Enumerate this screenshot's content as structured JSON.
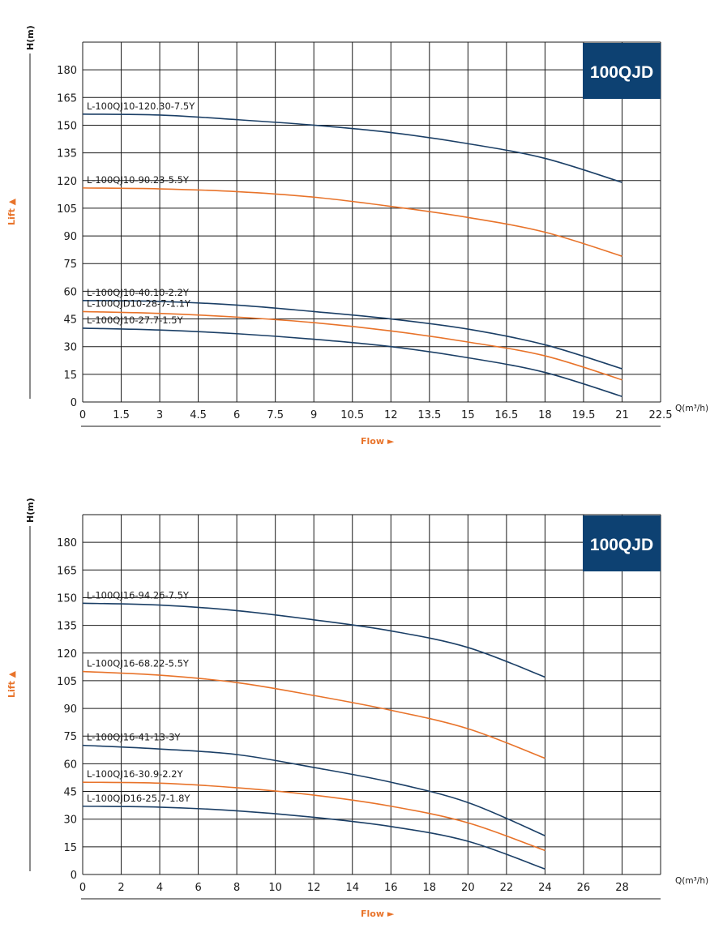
{
  "colors": {
    "dark": "#1b3f66",
    "orange": "#e8732a",
    "badge": "#0d4172",
    "grid": "#1a1a1a"
  },
  "chart_data": [
    {
      "type": "line",
      "model": "100QJD",
      "ylabel": "H(m)",
      "lift_label": "Lift ▲",
      "flow_label": "Flow ►",
      "x_unit": "Q(m³/h)",
      "x_ticks": [
        "0",
        "1.5",
        "3",
        "4.5",
        "6",
        "7.5",
        "9",
        "10.5",
        "12",
        "13.5",
        "15",
        "16.5",
        "18",
        "19.5",
        "21",
        "22.5"
      ],
      "y_ticks": [
        "0",
        "15",
        "30",
        "45",
        "60",
        "75",
        "90",
        "105",
        "120",
        "135",
        "150",
        "165",
        "180"
      ],
      "xlim": [
        0,
        22.5
      ],
      "ylim": [
        0,
        195
      ],
      "grid": true,
      "series": [
        {
          "name": "L-100QJ10-120.30-7.5Y",
          "color": "dark",
          "x": [
            0,
            3,
            6,
            9,
            12,
            15,
            18,
            21
          ],
          "y": [
            156,
            155.5,
            153,
            150,
            146,
            140,
            132,
            119
          ]
        },
        {
          "name": "L-100QJ10-90.23-5.5Y",
          "color": "orange",
          "x": [
            0,
            3,
            6,
            9,
            12,
            15,
            18,
            21
          ],
          "y": [
            116,
            115.5,
            114,
            111,
            106,
            100,
            92,
            79
          ]
        },
        {
          "name": "L-100QJ10-40.10-2.2Y",
          "color": "dark",
          "x": [
            0,
            3,
            6,
            9,
            12,
            15,
            18,
            21
          ],
          "y": [
            55,
            54.5,
            52.5,
            49,
            45,
            39.5,
            31,
            18
          ]
        },
        {
          "name": "L-100QJD10-28-7-1.1Y",
          "color": "orange",
          "x": [
            0,
            3,
            6,
            9,
            12,
            15,
            18,
            21
          ],
          "y": [
            49,
            48,
            46,
            43,
            38.5,
            32.5,
            25,
            12
          ]
        },
        {
          "name": "L-100QJ10-27.7-1.5Y",
          "color": "dark",
          "x": [
            0,
            3,
            6,
            9,
            12,
            15,
            18,
            21
          ],
          "y": [
            40,
            39,
            37,
            34,
            30,
            24,
            16,
            3
          ]
        }
      ]
    },
    {
      "type": "line",
      "model": "100QJD",
      "ylabel": "H(m)",
      "lift_label": "Lift ▲",
      "flow_label": "Flow ►",
      "x_unit": "Q(m³/h)",
      "x_ticks": [
        "0",
        "2",
        "4",
        "6",
        "8",
        "10",
        "12",
        "14",
        "16",
        "18",
        "20",
        "22",
        "24",
        "26",
        "28"
      ],
      "y_ticks": [
        "0",
        "15",
        "30",
        "45",
        "60",
        "75",
        "90",
        "105",
        "120",
        "135",
        "150",
        "165",
        "180"
      ],
      "xlim": [
        0,
        30
      ],
      "ylim": [
        0,
        195
      ],
      "grid": true,
      "series": [
        {
          "name": "L-100QJ16-94.26-7.5Y",
          "color": "dark",
          "x": [
            0,
            4,
            8,
            12,
            16,
            20,
            24
          ],
          "y": [
            147,
            146,
            143,
            138,
            132,
            123,
            107
          ]
        },
        {
          "name": "L-100QJ16-68.22-5.5Y",
          "color": "orange",
          "x": [
            0,
            4,
            8,
            12,
            16,
            20,
            24
          ],
          "y": [
            110,
            108,
            104,
            97,
            89,
            79,
            63
          ]
        },
        {
          "name": "L-100QJ16-41-13-3Y",
          "color": "dark",
          "x": [
            0,
            4,
            8,
            12,
            16,
            20,
            24
          ],
          "y": [
            70,
            68,
            65,
            58,
            50,
            39,
            21
          ]
        },
        {
          "name": "L-100QJ16-30.9-2.2Y",
          "color": "orange",
          "x": [
            0,
            4,
            8,
            12,
            16,
            20,
            24
          ],
          "y": [
            50,
            49.5,
            47,
            43,
            37,
            28,
            13
          ]
        },
        {
          "name": "L-100QJD16-25.7-1.8Y",
          "color": "dark",
          "x": [
            0,
            4,
            8,
            12,
            16,
            20,
            24
          ],
          "y": [
            37,
            36.5,
            34.5,
            31,
            26,
            18,
            3
          ]
        }
      ]
    }
  ]
}
